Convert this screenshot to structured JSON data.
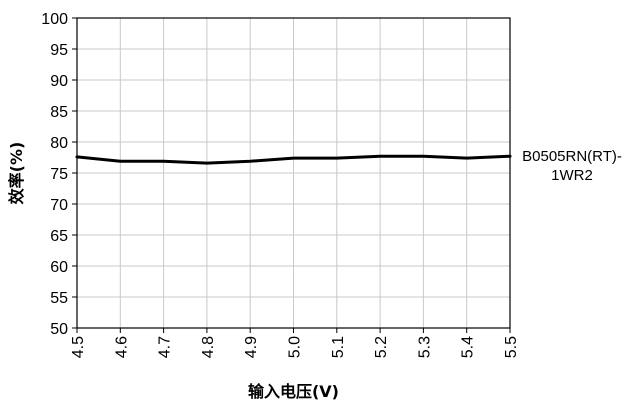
{
  "chart_data": {
    "type": "line",
    "title": "",
    "xlabel": "输入电压(V)",
    "ylabel": "效率(%)",
    "x": [
      4.5,
      4.6,
      4.7,
      4.8,
      4.9,
      5.0,
      5.1,
      5.2,
      5.3,
      5.4,
      5.5
    ],
    "x_tick_labels": [
      "4.5",
      "4.6",
      "4.7",
      "4.8",
      "4.9",
      "5.0",
      "5.1",
      "5.2",
      "5.3",
      "5.4",
      "5.5"
    ],
    "y_tick_labels": [
      "100",
      "95",
      "90",
      "85",
      "80",
      "75",
      "70",
      "65",
      "60",
      "55",
      "50"
    ],
    "xlim": [
      4.5,
      5.5
    ],
    "ylim": [
      50,
      100
    ],
    "grid": true,
    "legend_position": "right",
    "series": [
      {
        "name": "B0505RN(RT)-1WR2",
        "name_lines": [
          "B0505RN(RT)-",
          "1WR2"
        ],
        "color": "#000000",
        "values": [
          77.6,
          76.9,
          76.9,
          76.6,
          76.9,
          77.4,
          77.4,
          77.7,
          77.7,
          77.4,
          77.7
        ]
      }
    ]
  }
}
